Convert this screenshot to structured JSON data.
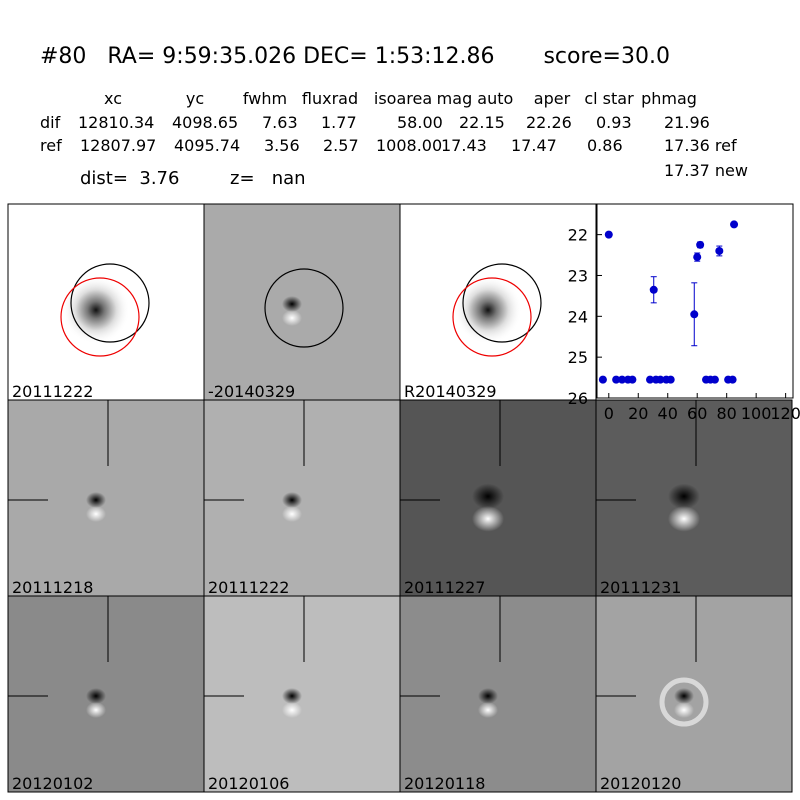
{
  "header": {
    "title": "#80   RA= 9:59:35.026 DEC= 1:53:12.86       score=30.0"
  },
  "table": {
    "columns": [
      "xc",
      "yc",
      "fwhm",
      "fluxrad",
      "isoarea",
      "mag auto",
      "aper",
      "cl star",
      "phmag"
    ],
    "rows": [
      {
        "label": "dif",
        "cells": [
          "12810.34",
          "4098.65",
          "7.63",
          "1.77",
          "58.00",
          "22.15",
          "22.26",
          "0.93",
          "21.96"
        ]
      },
      {
        "label": "ref",
        "cells": [
          "12807.97",
          "4095.74",
          "3.56",
          "2.57",
          "1008.00",
          "17.43",
          "17.47",
          "0.86",
          "17.36 ref"
        ]
      }
    ],
    "extra": "17.37 new"
  },
  "stats": {
    "dist": "dist=  3.76",
    "z": "z=   nan"
  },
  "panels": [
    {
      "label": "20111222"
    },
    {
      "label": "-20140329"
    },
    {
      "label": "R20140329"
    },
    {
      "label": "20111218"
    },
    {
      "label": "20111222",
      "label_color": "#ff0000"
    },
    {
      "label": "20111227"
    },
    {
      "label": "20111231"
    },
    {
      "label": "20120102"
    },
    {
      "label": "20120106"
    },
    {
      "label": "20120118"
    },
    {
      "label": "20120120"
    }
  ],
  "chart_data": {
    "type": "errorbar",
    "x": [
      -4,
      0,
      5,
      9,
      13,
      16,
      28,
      30.5,
      32,
      35,
      39,
      42,
      58,
      60,
      62,
      66,
      69,
      72,
      75,
      81,
      84,
      85
    ],
    "values": [
      25.55,
      22.0,
      25.55,
      25.55,
      25.55,
      25.55,
      25.55,
      23.35,
      25.55,
      25.55,
      25.55,
      25.55,
      23.95,
      22.55,
      22.25,
      25.55,
      25.55,
      25.55,
      22.4,
      25.55,
      25.55,
      21.75
    ],
    "errors": [
      0.05,
      0.05,
      0.05,
      0.05,
      0.05,
      0.05,
      0.05,
      0.32,
      0.05,
      0.05,
      0.05,
      0.05,
      0.77,
      0.1,
      0.07,
      0.05,
      0.05,
      0.05,
      0.12,
      0.05,
      0.05,
      0.05
    ],
    "color": "#0000cc",
    "xlim": [
      -8,
      125
    ],
    "ylim": [
      21.25,
      26
    ],
    "invert_y": true,
    "xticks": [
      0,
      20,
      40,
      60,
      80,
      100,
      120
    ],
    "yticks": [
      22,
      23,
      24,
      25,
      26
    ]
  }
}
